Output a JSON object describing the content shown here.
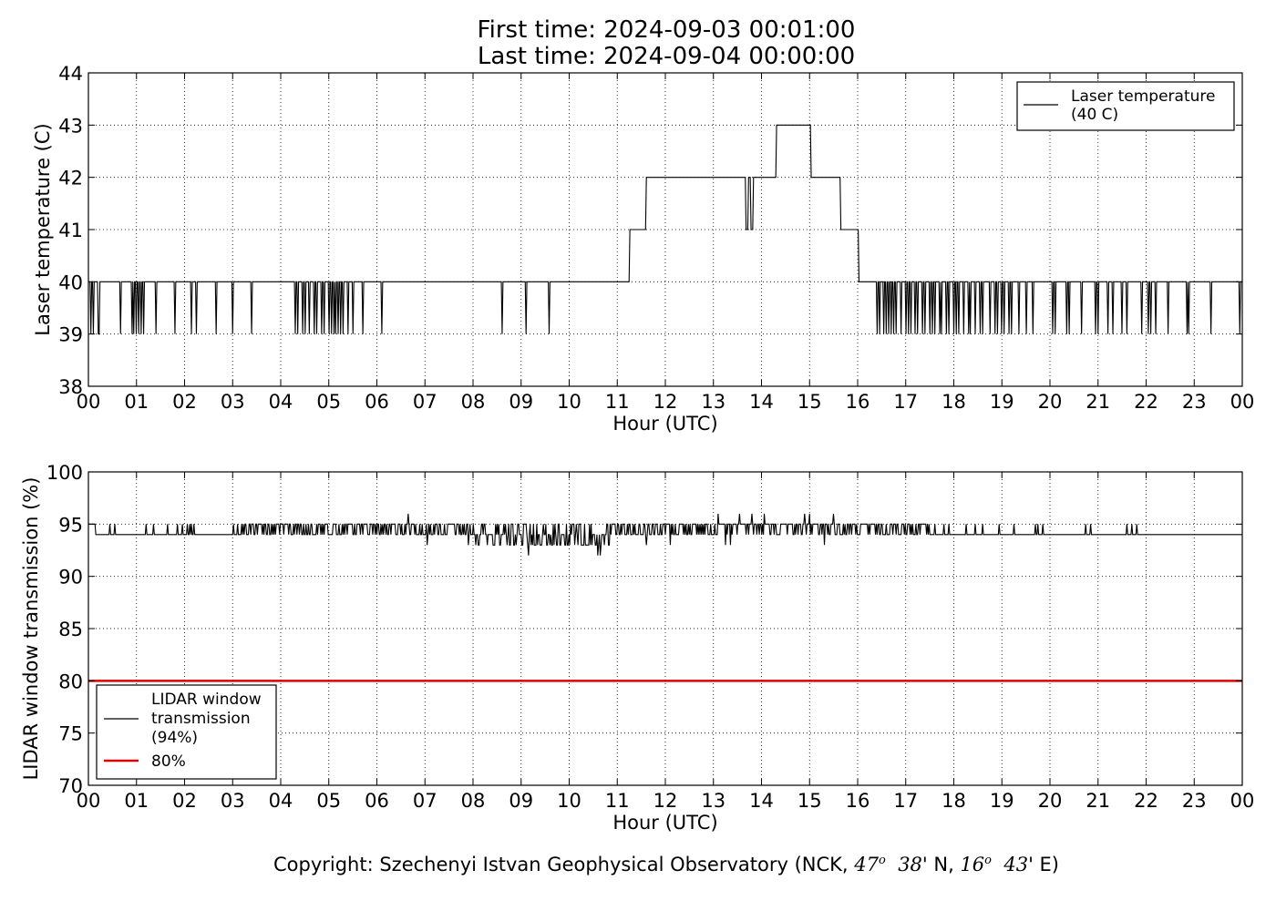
{
  "header": {
    "first_time": "First time: 2024-09-03 00:01:00",
    "last_time": "Last time: 2024-09-04 00:00:00"
  },
  "footer": {
    "copyright_prefix": "Copyright: Szechenyi Istvan Geophysical Observatory (NCK, ",
    "lat_deg": "47",
    "lat_min": "38",
    "lat_suffix": "' N, ",
    "lon_deg": "16",
    "lon_min": "43",
    "lon_suffix": "' E)",
    "degree_mark": "o"
  },
  "chart_data": [
    {
      "type": "line",
      "ylabel": "Laser temperature (C)",
      "xlabel": "Hour (UTC)",
      "xlim": [
        0,
        24
      ],
      "ylim": [
        38,
        44
      ],
      "yticks": [
        38,
        39,
        40,
        41,
        42,
        43,
        44
      ],
      "xtick_labels": [
        "00",
        "01",
        "02",
        "03",
        "04",
        "05",
        "06",
        "07",
        "08",
        "09",
        "10",
        "11",
        "12",
        "13",
        "14",
        "15",
        "16",
        "17",
        "18",
        "19",
        "20",
        "21",
        "22",
        "23",
        "00"
      ],
      "grid": true,
      "legend_position": "upper right",
      "series": [
        {
          "name": "Laser temperature\n(40 C)",
          "color": "#000000",
          "baseline": 40,
          "steps": [
            [
              0,
              40
            ],
            [
              11.25,
              41
            ],
            [
              11.6,
              42
            ],
            [
              13.68,
              41
            ],
            [
              13.72,
              42
            ],
            [
              13.77,
              41
            ],
            [
              13.82,
              42
            ],
            [
              14.3,
              43
            ],
            [
              15.02,
              42
            ],
            [
              15.65,
              41
            ],
            [
              16.02,
              40
            ],
            [
              24,
              40
            ]
          ],
          "dips": [
            {
              "value": 39,
              "x": [
                0.05,
                0.1,
                0.2,
                0.22,
                0.66,
                0.9,
                0.95,
                1.0,
                1.05,
                1.1,
                1.15,
                1.4,
                1.8,
                2.15,
                2.25,
                2.65,
                3.0,
                3.4,
                4.3,
                4.35,
                4.45,
                4.5,
                4.6,
                4.7,
                4.75,
                4.85,
                4.9,
                5.0,
                5.05,
                5.1,
                5.15,
                5.2,
                5.25,
                5.3,
                5.4,
                5.5,
                5.7,
                6.1,
                8.6,
                9.1,
                9.58,
                16.4,
                16.45,
                16.55,
                16.6,
                16.65,
                16.7,
                16.75,
                16.8,
                16.9,
                17.0,
                17.05,
                17.1,
                17.2,
                17.25,
                17.35,
                17.4,
                17.5,
                17.55,
                17.6,
                17.7,
                17.75,
                17.85,
                17.9,
                18.0,
                18.05,
                18.1,
                18.2,
                18.3,
                18.35,
                18.45,
                18.55,
                18.6,
                18.75,
                18.85,
                18.9,
                19.0,
                19.05,
                19.15,
                19.2,
                19.35,
                19.5,
                19.65,
                20.05,
                20.1,
                20.35,
                20.4,
                20.65,
                20.95,
                21.0,
                21.2,
                21.3,
                21.5,
                21.6,
                21.9,
                22.05,
                22.1,
                22.2,
                22.45,
                22.85,
                22.88,
                23.35,
                23.95
              ]
            }
          ]
        }
      ]
    },
    {
      "type": "line",
      "ylabel": "LIDAR window transmission (%)",
      "xlabel": "Hour (UTC)",
      "xlim": [
        0,
        24
      ],
      "ylim": [
        70,
        100
      ],
      "yticks": [
        70,
        75,
        80,
        85,
        90,
        95,
        100
      ],
      "xtick_labels": [
        "00",
        "01",
        "02",
        "03",
        "04",
        "05",
        "06",
        "07",
        "08",
        "09",
        "10",
        "11",
        "12",
        "13",
        "14",
        "15",
        "16",
        "17",
        "18",
        "19",
        "20",
        "21",
        "22",
        "23",
        "00"
      ],
      "grid": true,
      "legend_position": "lower left",
      "series": [
        {
          "name": "LIDAR window\ntransmission\n(94%)",
          "color": "#000000",
          "baseline": 94,
          "regions": [
            {
              "from": 0.0,
              "to": 0.15,
              "value": 95
            },
            {
              "from": 3.0,
              "to": 7.9,
              "noise": "up",
              "density": 0.55,
              "amplitude": 1
            },
            {
              "from": 7.9,
              "to": 10.9,
              "noise": "mixed",
              "density": 0.6,
              "amplitude": 1
            },
            {
              "from": 10.9,
              "to": 17.5,
              "noise": "up",
              "density": 0.6,
              "amplitude": 1
            }
          ],
          "spikes": [
            {
              "value": 95,
              "x": [
                0.45,
                0.55,
                1.2,
                1.35,
                1.65,
                1.85,
                1.95,
                2.05,
                2.1,
                2.15,
                2.2,
                17.6,
                17.8,
                17.9,
                18.25,
                18.45,
                18.6,
                18.95,
                19.25,
                19.7,
                19.75,
                19.85,
                20.75,
                20.85,
                21.6,
                21.7,
                21.8
              ]
            },
            {
              "value": 96,
              "x": [
                6.65,
                13.1,
                13.55,
                13.8,
                14.05,
                14.9,
                15.0,
                15.5
              ]
            },
            {
              "value": 93,
              "x": [
                7.05,
                8.7,
                10.25,
                10.35,
                10.6,
                11.6,
                12.1,
                13.25,
                13.35,
                15.3
              ]
            },
            {
              "value": 92,
              "x": [
                9.15,
                10.6,
                10.65
              ]
            }
          ]
        },
        {
          "name": "80%",
          "color": "#e00000",
          "constant": 80
        }
      ]
    }
  ]
}
